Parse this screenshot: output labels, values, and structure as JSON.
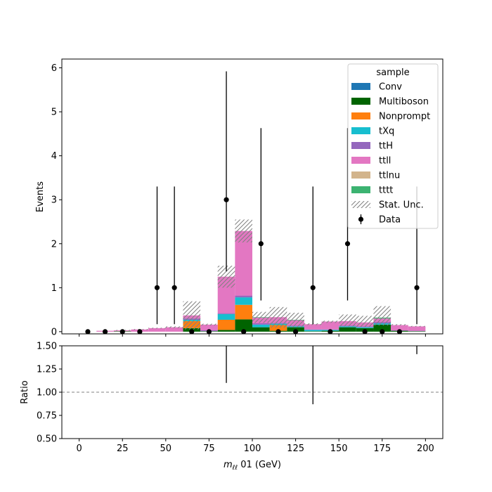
{
  "chart_data": {
    "type": "bar",
    "stacked": true,
    "main_panel": {
      "ylabel": "Events",
      "ylim": [
        -0.05,
        6.2
      ],
      "yticks": [
        "0",
        "1",
        "2",
        "3",
        "4",
        "5",
        "6"
      ]
    },
    "ratio_panel": {
      "ylabel": "Ratio",
      "ylim": [
        0.5,
        1.5
      ],
      "yticks": [
        "0.50",
        "0.75",
        "1.00",
        "1.25",
        "1.50"
      ],
      "reference_line": 1.0,
      "points": [
        {
          "x": 85,
          "y_low": 1.1,
          "y_high": 1.5
        },
        {
          "x": 135,
          "y_low": 0.87,
          "y_high": 1.5
        },
        {
          "x": 195,
          "y_low": 1.41,
          "y_high": 1.5
        }
      ]
    },
    "xlabel_prefix": "m",
    "xlabel_sub": "ℓℓ",
    "xlabel_suffix": " 01 (GeV)",
    "xlim": [
      -10,
      210
    ],
    "xticks": [
      "0",
      "25",
      "50",
      "75",
      "100",
      "125",
      "150",
      "175",
      "200"
    ],
    "bin_edges": [
      0,
      10,
      20,
      30,
      40,
      50,
      60,
      70,
      80,
      90,
      100,
      110,
      120,
      130,
      140,
      150,
      160,
      170,
      180,
      190,
      200
    ],
    "legend": {
      "title": "sample",
      "position": "top-right"
    },
    "series": [
      {
        "name": "Conv",
        "color": "#1f77b4",
        "values": [
          0,
          0,
          0,
          0,
          0,
          0,
          0,
          0,
          0,
          0,
          0,
          0,
          0,
          0,
          0,
          0,
          0,
          0,
          0,
          0
        ]
      },
      {
        "name": "Multiboson",
        "color": "#006400",
        "values": [
          0,
          0,
          0.01,
          0,
          0,
          0,
          0.08,
          0.01,
          0.04,
          0.28,
          0.1,
          0.02,
          0.1,
          0.01,
          0.02,
          0.1,
          0.08,
          0.16,
          0.02,
          0.01
        ]
      },
      {
        "name": "Nonprompt",
        "color": "#ff7f0e",
        "values": [
          0,
          0,
          0,
          0,
          0,
          0,
          0.16,
          0,
          0.23,
          0.33,
          0,
          0.13,
          0,
          0,
          0,
          0,
          0,
          0,
          0,
          0
        ]
      },
      {
        "name": "tXq",
        "color": "#17becf",
        "values": [
          0,
          0,
          0,
          0,
          0,
          0,
          0.03,
          0,
          0.13,
          0.17,
          0.06,
          0.03,
          0.02,
          0.03,
          0.02,
          0.02,
          0.02,
          0.03,
          0,
          0
        ]
      },
      {
        "name": "ttH",
        "color": "#9467bd",
        "values": [
          0,
          0,
          0,
          0,
          0,
          0,
          0.03,
          0.02,
          0.02,
          0.04,
          0.03,
          0.02,
          0.02,
          0.01,
          0.01,
          0.02,
          0.02,
          0.03,
          0.01,
          0.01
        ]
      },
      {
        "name": "ttll",
        "color": "#e377c2",
        "values": [
          0,
          0.02,
          0.02,
          0.05,
          0.08,
          0.1,
          0.07,
          0.13,
          0.83,
          1.47,
          0.13,
          0.13,
          0.12,
          0.12,
          0.18,
          0.1,
          0.09,
          0.08,
          0.12,
          0.1
        ]
      },
      {
        "name": "ttlnu",
        "color": "#d2b48c",
        "values": [
          0,
          0,
          0,
          0,
          0,
          0,
          0,
          0,
          0,
          0,
          0,
          0,
          0,
          0,
          0,
          0,
          0,
          0,
          0,
          0
        ]
      },
      {
        "name": "tttt",
        "color": "#3cb371",
        "values": [
          0,
          0,
          0,
          0,
          0,
          0,
          0,
          0,
          0,
          0,
          0.01,
          0,
          0.01,
          0,
          0,
          0,
          0,
          0.02,
          0,
          0
        ]
      }
    ],
    "stat_unc": {
      "name": "Stat. Unc.",
      "up": [
        0,
        0.02,
        0.04,
        0.06,
        0.09,
        0.12,
        0.69,
        0.18,
        1.5,
        2.55,
        0.45,
        0.56,
        0.43,
        0.19,
        0.25,
        0.39,
        0.36,
        0.58,
        0.17,
        0.13
      ],
      "down": [
        0,
        0.02,
        0.02,
        0.04,
        0.07,
        0.08,
        0.05,
        0.14,
        1.0,
        2.03,
        0.2,
        0.09,
        0.1,
        0.15,
        0.2,
        0.12,
        0.1,
        0.14,
        0.14,
        0.11
      ]
    },
    "data": {
      "name": "Data",
      "x": [
        5,
        15,
        25,
        35,
        45,
        55,
        65,
        75,
        85,
        95,
        105,
        115,
        125,
        135,
        145,
        155,
        165,
        175,
        185,
        195
      ],
      "y": [
        0,
        0,
        0,
        0,
        1,
        1,
        0,
        0,
        3,
        0,
        2,
        0,
        0,
        1,
        0,
        2,
        0,
        0,
        0,
        1
      ],
      "err_low": [
        0,
        0,
        0,
        0,
        0.83,
        0.83,
        0,
        0,
        1.63,
        0,
        1.29,
        0,
        0,
        0.83,
        0,
        1.29,
        0,
        0,
        0,
        0.83
      ],
      "err_high": [
        0,
        0,
        0,
        0,
        2.3,
        2.3,
        0,
        0,
        2.92,
        0,
        2.63,
        0,
        0,
        2.3,
        0,
        2.63,
        0,
        0,
        0,
        2.3
      ]
    }
  }
}
